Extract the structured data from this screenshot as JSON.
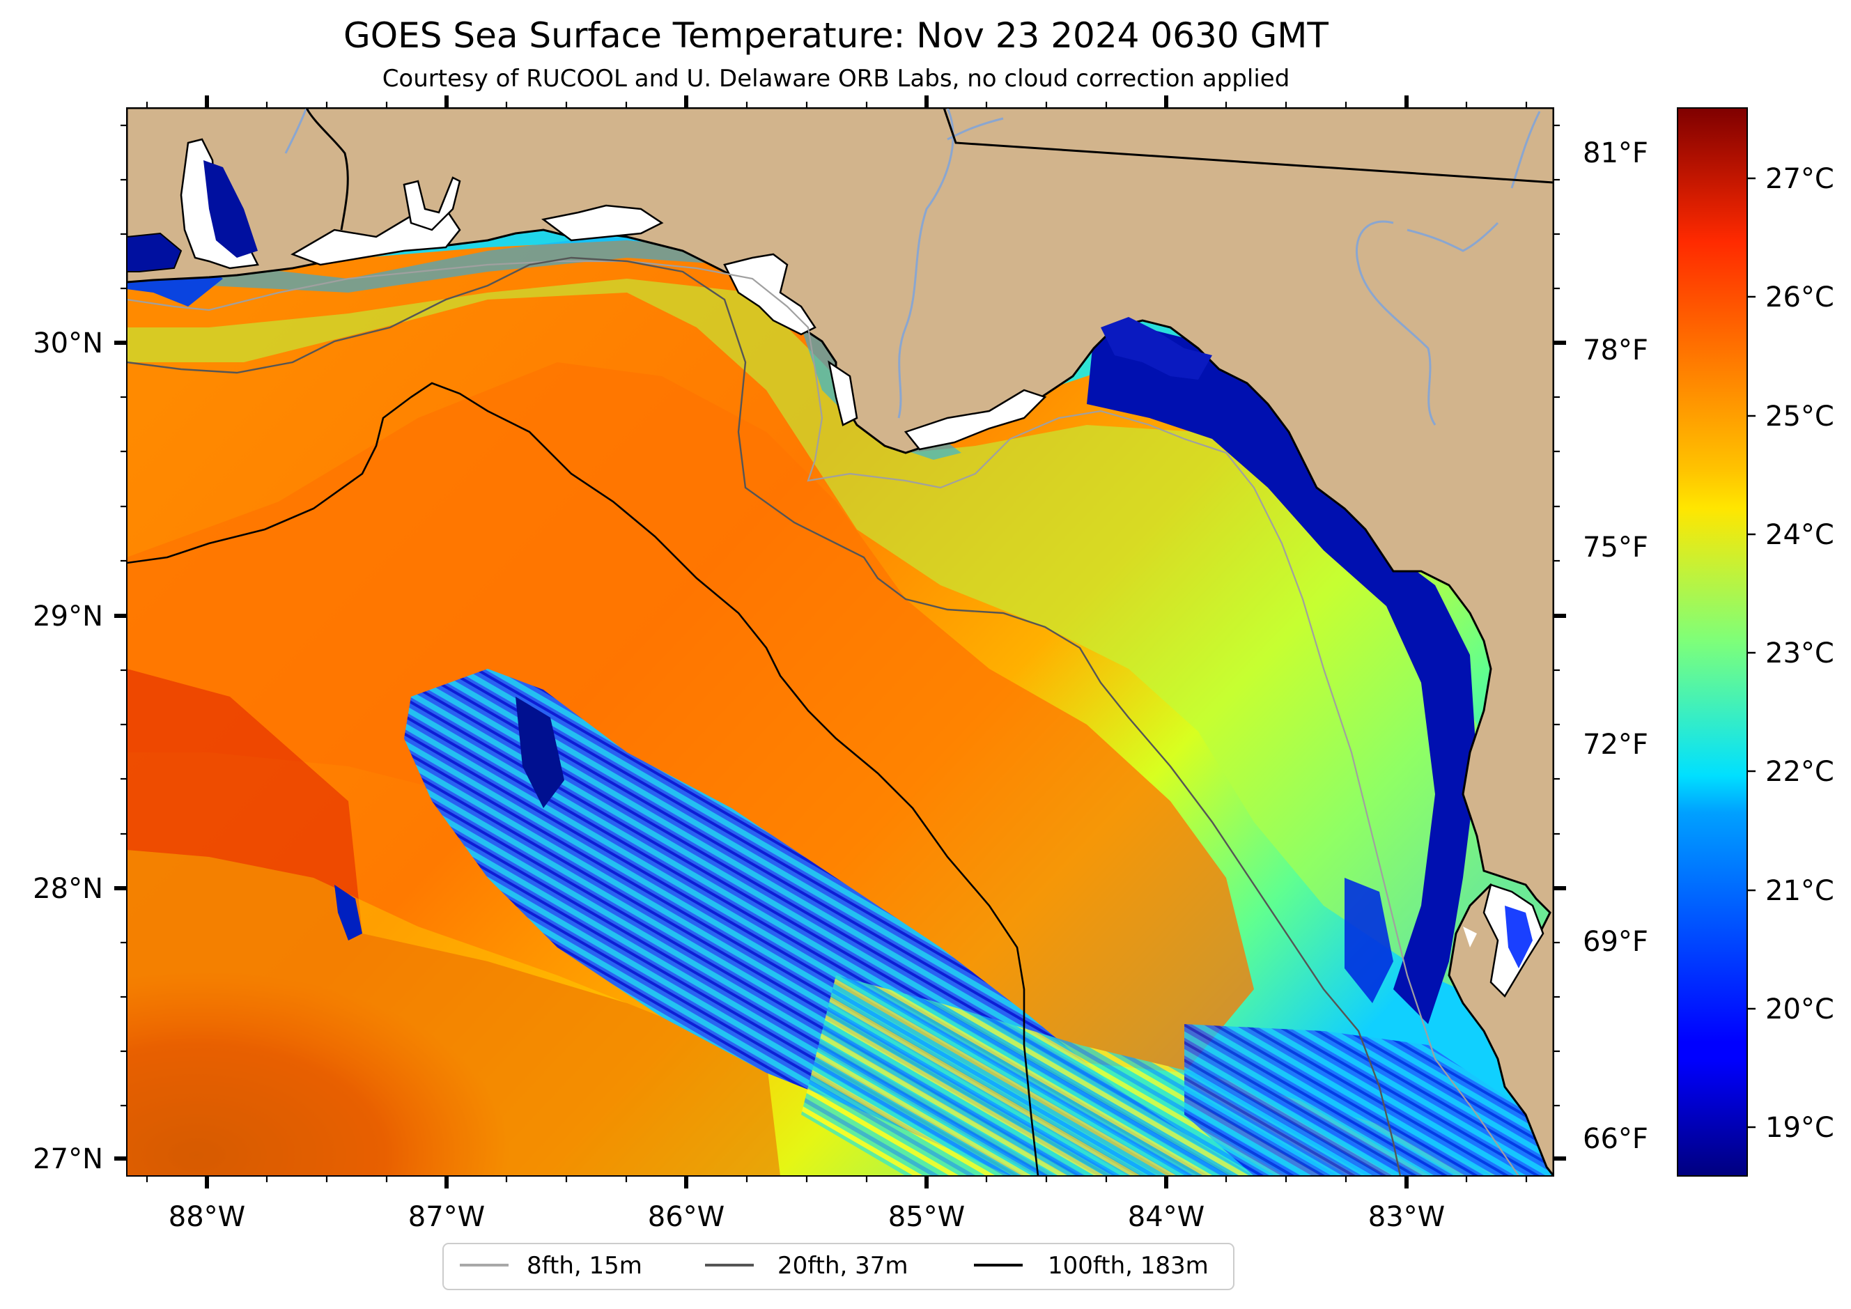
{
  "title": "GOES Sea Surface Temperature: Nov 23 2024 0630 GMT",
  "subtitle": "Courtesy of RUCOOL and U. Delaware ORB Labs, no cloud correction applied",
  "map": {
    "region": "Northeastern Gulf of Mexico / Florida Big Bend",
    "lon_ticks": [
      "88°W",
      "87°W",
      "86°W",
      "85°W",
      "84°W",
      "83°W"
    ],
    "lat_ticks": [
      "30°N",
      "29°N",
      "28°N",
      "27°N"
    ],
    "land_color": "#d2b48c",
    "cloud_mask_color": "#ffffff",
    "lon_range": [
      -88.33,
      -82.38
    ],
    "lat_range": [
      26.93,
      30.85
    ]
  },
  "fahrenheit_axis": {
    "labels": [
      "81°F",
      "78°F",
      "75°F",
      "72°F",
      "69°F",
      "66°F"
    ]
  },
  "colorbar": {
    "colormap": "jet",
    "range_c": [
      18.6,
      27.6
    ],
    "labels": [
      "27°C",
      "26°C",
      "25°C",
      "24°C",
      "23°C",
      "22°C",
      "21°C",
      "20°C",
      "19°C"
    ]
  },
  "legend": {
    "items": [
      {
        "label": "8fth, 15m",
        "color": "#a8a8a8"
      },
      {
        "label": "20fth, 37m",
        "color": "#555555"
      },
      {
        "label": "100fth, 183m",
        "color": "#000000"
      }
    ]
  }
}
